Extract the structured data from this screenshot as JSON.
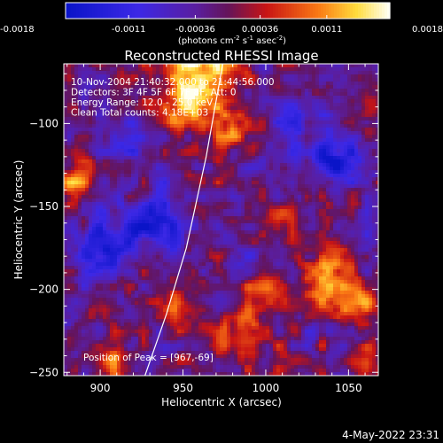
{
  "chart_data": {
    "type": "heatmap",
    "title": "Reconstructed RHESSI Image",
    "xlabel": "Heliocentric X (arcsec)",
    "ylabel": "Heliocentric Y (arcsec)",
    "xlim": [
      878,
      1068
    ],
    "ylim": [
      -252,
      -64
    ],
    "xticks": [
      900,
      950,
      1000,
      1050
    ],
    "yticks": [
      -100,
      -150,
      -200,
      -250
    ],
    "colorbar": {
      "range": [
        -0.0018,
        0.0018
      ],
      "tick_labels": [
        "-0.0018",
        "-0.0011",
        "-0.00036",
        "0.00036",
        "0.0011",
        "0.0018"
      ],
      "tick_values": [
        -0.0018,
        -0.0011,
        -0.00036,
        0.00036,
        0.0011,
        0.0018
      ],
      "units_label_parts": [
        "(photons cm",
        "-2",
        " s",
        "-1",
        " asec",
        "-2",
        ")"
      ]
    },
    "info_lines": [
      "10-Nov-2004 21:40:32.000 to 21:44:56.000",
      "Detectors: 3F 4F 5F 6F 7F 8F, Att: 0",
      "Energy Range: 12.0 - 25.0 keV",
      "Clean     Total counts: 4.18E+03"
    ],
    "peak_label": "Position of Peak = [967,-69]",
    "peak_position": [
      967,
      -69
    ],
    "limb_curve": [
      [
        974,
        -64
      ],
      [
        964,
        -120
      ],
      [
        952,
        -175
      ],
      [
        940,
        -215
      ],
      [
        927,
        -252
      ]
    ],
    "hot_spots": [
      {
        "x": 962,
        "y": -68,
        "amp": 0.0018,
        "r": 14
      },
      {
        "x": 948,
        "y": -90,
        "amp": 0.0012,
        "r": 12
      },
      {
        "x": 978,
        "y": -100,
        "amp": 0.0009,
        "r": 10
      },
      {
        "x": 885,
        "y": -135,
        "amp": 0.0011,
        "r": 8
      },
      {
        "x": 1030,
        "y": -200,
        "amp": 0.001,
        "r": 9
      },
      {
        "x": 1042,
        "y": -185,
        "amp": 0.0013,
        "r": 8
      },
      {
        "x": 1055,
        "y": -208,
        "amp": 0.0014,
        "r": 9
      },
      {
        "x": 985,
        "y": -225,
        "amp": 0.0013,
        "r": 10
      },
      {
        "x": 1000,
        "y": -205,
        "amp": 0.001,
        "r": 8
      },
      {
        "x": 952,
        "y": -215,
        "amp": 0.0011,
        "r": 9
      },
      {
        "x": 1060,
        "y": -245,
        "amp": 0.001,
        "r": 8
      },
      {
        "x": 910,
        "y": -240,
        "amp": 0.0008,
        "r": 8
      },
      {
        "x": 1010,
        "y": -160,
        "amp": 0.0007,
        "r": 9
      },
      {
        "x": 930,
        "y": -160,
        "amp": -0.0012,
        "r": 14
      },
      {
        "x": 900,
        "y": -175,
        "amp": -0.0014,
        "r": 10
      },
      {
        "x": 1040,
        "y": -120,
        "amp": -0.0013,
        "r": 11
      },
      {
        "x": 1015,
        "y": -95,
        "amp": -0.0008,
        "r": 10
      },
      {
        "x": 920,
        "y": -110,
        "amp": -0.001,
        "r": 9
      }
    ]
  },
  "footer": {
    "date_stamp": "4-May-2022 23:31"
  }
}
